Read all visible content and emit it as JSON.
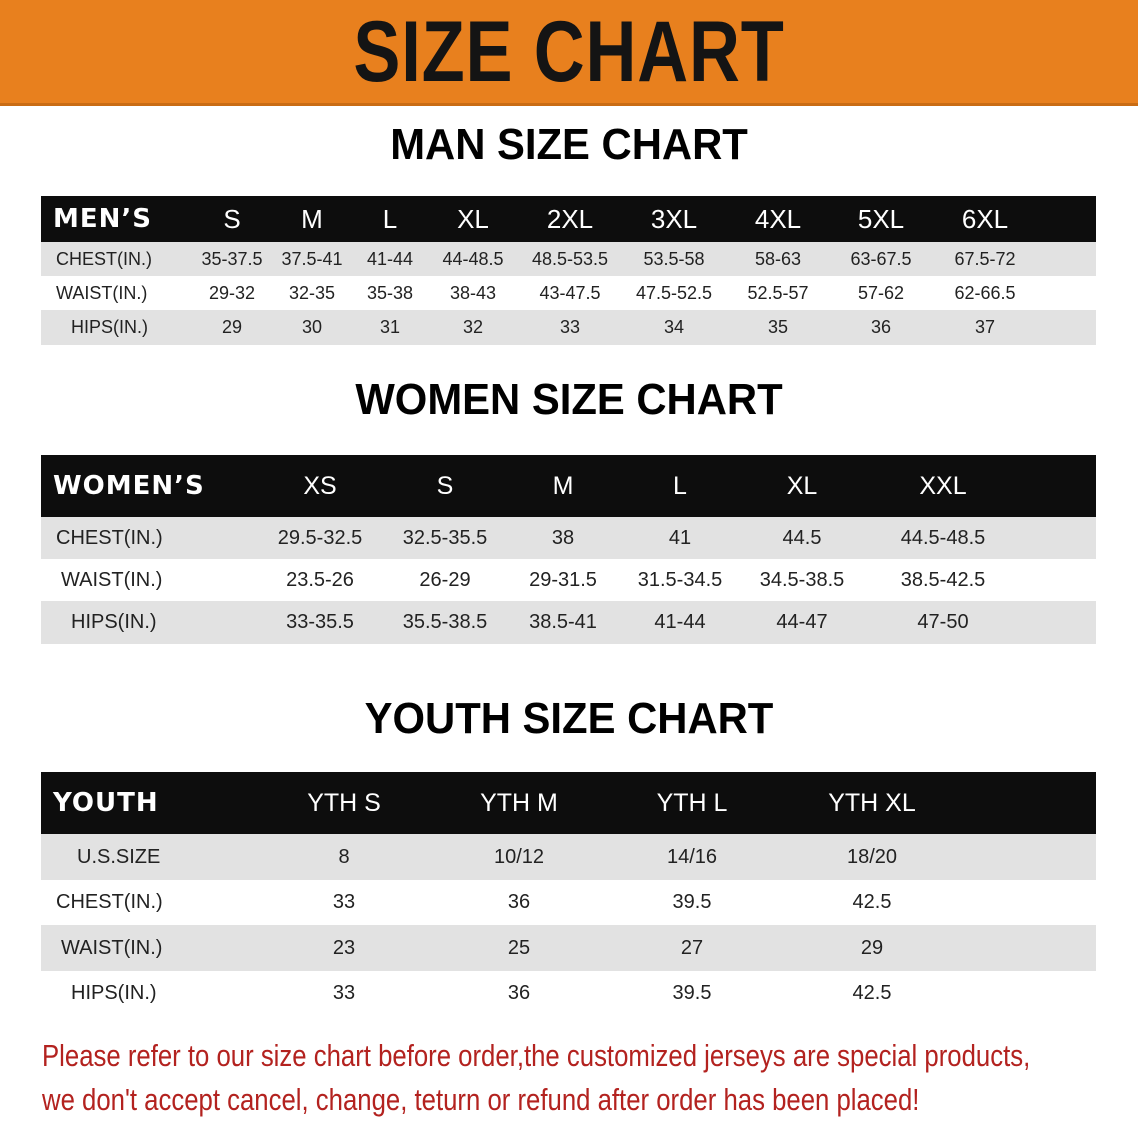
{
  "banner": {
    "title": "SIZE CHART",
    "color": "#e8801e"
  },
  "men": {
    "title": "MAN SIZE CHART",
    "header_label": "MEN’S",
    "sizes": [
      "S",
      "M",
      "L",
      "XL",
      "2XL",
      "3XL",
      "4XL",
      "5XL",
      "6XL"
    ],
    "rows": [
      {
        "label": "CHEST(IN.)",
        "values": [
          "35-37.5",
          "37.5-41",
          "41-44",
          "44-48.5",
          "48.5-53.5",
          "53.5-58",
          "58-63",
          "63-67.5",
          "67.5-72"
        ]
      },
      {
        "label": "WAIST(IN.)",
        "values": [
          "29-32",
          "32-35",
          "35-38",
          "38-43",
          "43-47.5",
          "47.5-52.5",
          "52.5-57",
          "57-62",
          "62-66.5"
        ]
      },
      {
        "label": "HIPS(IN.)",
        "values": [
          "29",
          "30",
          "31",
          "32",
          "33",
          "34",
          "35",
          "36",
          "37"
        ]
      }
    ]
  },
  "women": {
    "title": "WOMEN SIZE CHART",
    "header_label": "WOMEN’S",
    "sizes": [
      "XS",
      "S",
      "M",
      "L",
      "XL",
      "XXL"
    ],
    "rows": [
      {
        "label": "CHEST(IN.)",
        "values": [
          "29.5-32.5",
          "32.5-35.5",
          "38",
          "41",
          "44.5",
          "44.5-48.5"
        ]
      },
      {
        "label": "WAIST(IN.)",
        "values": [
          "23.5-26",
          "26-29",
          "29-31.5",
          "31.5-34.5",
          "34.5-38.5",
          "38.5-42.5"
        ]
      },
      {
        "label": "HIPS(IN.)",
        "values": [
          "33-35.5",
          "35.5-38.5",
          "38.5-41",
          "41-44",
          "44-47",
          "47-50"
        ]
      }
    ]
  },
  "youth": {
    "title": "YOUTH SIZE CHART",
    "header_label": "YOUTH",
    "sizes": [
      "YTH S",
      "YTH M",
      "YTH L",
      "YTH XL"
    ],
    "rows": [
      {
        "label": "U.S.SIZE",
        "values": [
          "8",
          "10/12",
          "14/16",
          "18/20"
        ]
      },
      {
        "label": "CHEST(IN.)",
        "values": [
          "33",
          "36",
          "39.5",
          "42.5"
        ]
      },
      {
        "label": "WAIST(IN.)",
        "values": [
          "23",
          "25",
          "27",
          "29"
        ]
      },
      {
        "label": "HIPS(IN.)",
        "values": [
          "33",
          "36",
          "39.5",
          "42.5"
        ]
      }
    ]
  },
  "footer": {
    "line1": "Please refer to our size chart before order,the customized jerseys are special products,",
    "line2": "we don't accept cancel, change, teturn or refund after order has been placed!",
    "color": "#b3221f"
  }
}
